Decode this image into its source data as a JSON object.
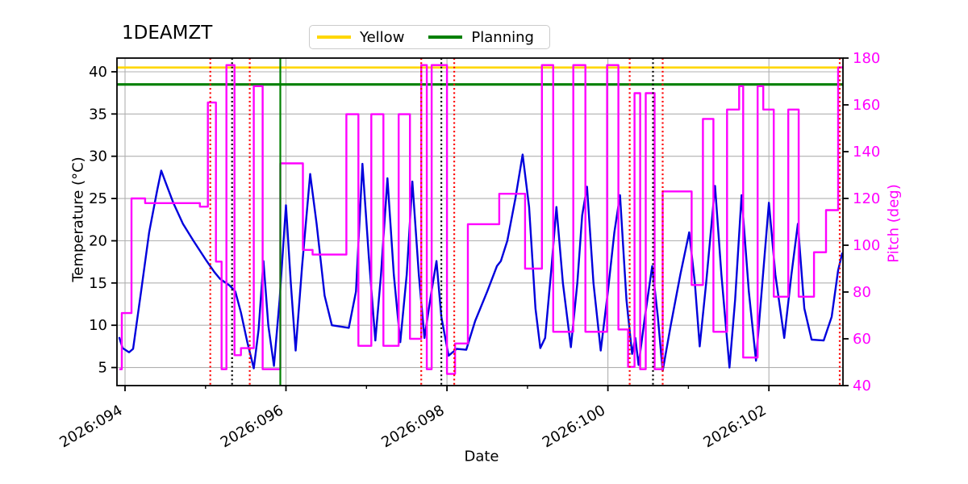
{
  "chart_data": {
    "type": "line",
    "title": "1DEAMZT",
    "xlabel": "Date",
    "ylabel_left": "Temperature (°C)",
    "ylabel_right": "Pitch (deg)",
    "grid": true,
    "legend_position": "top-center",
    "x_domain": [
      93.9,
      102.92
    ],
    "x_ticks": [
      {
        "value": 94,
        "label": "2026:094"
      },
      {
        "value": 96,
        "label": "2026:096"
      },
      {
        "value": 98,
        "label": "2026:098"
      },
      {
        "value": 100,
        "label": "2026:100"
      },
      {
        "value": 102,
        "label": "2026:102"
      }
    ],
    "x_minor_ticks": [
      95,
      97,
      99,
      101
    ],
    "y_left": {
      "range": [
        2.86,
        41.62
      ],
      "ticks": [
        5,
        10,
        15,
        20,
        25,
        30,
        35,
        40
      ]
    },
    "y_right": {
      "range": [
        40,
        180
      ],
      "ticks": [
        40,
        60,
        80,
        100,
        120,
        140,
        160,
        180
      ]
    },
    "limits": {
      "yellow": {
        "label": "Yellow",
        "value": 40.5,
        "color": "#ffd700"
      },
      "planning": {
        "label": "Planning",
        "value": 38.5,
        "color": "#008000"
      }
    },
    "event_lines": {
      "red_dotted_days": [
        95.06,
        95.55,
        97.68,
        98.09,
        100.27,
        100.68,
        102.88
      ],
      "black_dotted_days": [
        95.33,
        97.93,
        100.56
      ],
      "green_solid_days": [
        95.93
      ]
    },
    "series": {
      "temperature": {
        "name": "1DEAMZT",
        "axis": "left",
        "color": "#0000dd",
        "points": [
          [
            93.93,
            8.5
          ],
          [
            93.97,
            7.3
          ],
          [
            94.05,
            6.8
          ],
          [
            94.1,
            7.2
          ],
          [
            94.2,
            14.0
          ],
          [
            94.3,
            21.0
          ],
          [
            94.4,
            26.0
          ],
          [
            94.45,
            28.3
          ],
          [
            94.5,
            27.0
          ],
          [
            94.6,
            24.5
          ],
          [
            94.72,
            22.0
          ],
          [
            94.85,
            20.0
          ],
          [
            95.0,
            17.8
          ],
          [
            95.11,
            16.3
          ],
          [
            95.18,
            15.5
          ],
          [
            95.3,
            14.7
          ],
          [
            95.37,
            14.0
          ],
          [
            95.44,
            11.5
          ],
          [
            95.52,
            8.0
          ],
          [
            95.6,
            4.9
          ],
          [
            95.66,
            9.5
          ],
          [
            95.72,
            17.6
          ],
          [
            95.78,
            10.0
          ],
          [
            95.85,
            5.2
          ],
          [
            95.92,
            13.0
          ],
          [
            96.0,
            24.2
          ],
          [
            96.06,
            15.0
          ],
          [
            96.12,
            7.0
          ],
          [
            96.2,
            17.0
          ],
          [
            96.3,
            27.9
          ],
          [
            96.38,
            22.0
          ],
          [
            96.48,
            13.5
          ],
          [
            96.57,
            10.0
          ],
          [
            96.78,
            9.7
          ],
          [
            96.87,
            14.0
          ],
          [
            96.95,
            29.1
          ],
          [
            97.03,
            18.0
          ],
          [
            97.11,
            8.2
          ],
          [
            97.18,
            16.0
          ],
          [
            97.26,
            27.4
          ],
          [
            97.34,
            16.0
          ],
          [
            97.42,
            8.0
          ],
          [
            97.5,
            16.0
          ],
          [
            97.57,
            27.0
          ],
          [
            97.65,
            16.0
          ],
          [
            97.72,
            8.5
          ],
          [
            97.8,
            13.5
          ],
          [
            97.87,
            17.6
          ],
          [
            97.93,
            11.0
          ],
          [
            98.02,
            6.4
          ],
          [
            98.12,
            7.2
          ],
          [
            98.24,
            7.1
          ],
          [
            98.35,
            10.5
          ],
          [
            98.5,
            14.0
          ],
          [
            98.62,
            17.0
          ],
          [
            98.67,
            17.6
          ],
          [
            98.75,
            20.0
          ],
          [
            98.85,
            25.0
          ],
          [
            98.94,
            30.2
          ],
          [
            99.02,
            24.0
          ],
          [
            99.1,
            12.0
          ],
          [
            99.16,
            7.3
          ],
          [
            99.22,
            8.5
          ],
          [
            99.3,
            17.0
          ],
          [
            99.36,
            24.0
          ],
          [
            99.44,
            15.0
          ],
          [
            99.54,
            7.4
          ],
          [
            99.62,
            15.0
          ],
          [
            99.68,
            23.0
          ],
          [
            99.74,
            26.4
          ],
          [
            99.82,
            15.0
          ],
          [
            99.91,
            7.0
          ],
          [
            100.0,
            14.0
          ],
          [
            100.08,
            21.0
          ],
          [
            100.15,
            25.4
          ],
          [
            100.23,
            13.0
          ],
          [
            100.3,
            6.6
          ],
          [
            100.34,
            8.5
          ],
          [
            100.38,
            5.3
          ],
          [
            100.46,
            11.0
          ],
          [
            100.55,
            17.0
          ],
          [
            100.62,
            11.0
          ],
          [
            100.68,
            4.6
          ],
          [
            100.78,
            10.0
          ],
          [
            100.9,
            16.0
          ],
          [
            101.01,
            21.0
          ],
          [
            101.08,
            15.0
          ],
          [
            101.14,
            7.5
          ],
          [
            101.22,
            15.0
          ],
          [
            101.33,
            26.5
          ],
          [
            101.41,
            16.0
          ],
          [
            101.51,
            5.0
          ],
          [
            101.58,
            13.0
          ],
          [
            101.66,
            25.4
          ],
          [
            101.75,
            14.0
          ],
          [
            101.84,
            5.8
          ],
          [
            101.91,
            14.0
          ],
          [
            102.0,
            24.5
          ],
          [
            102.08,
            16.0
          ],
          [
            102.19,
            8.5
          ],
          [
            102.28,
            16.0
          ],
          [
            102.36,
            22.0
          ],
          [
            102.44,
            12.0
          ],
          [
            102.53,
            8.3
          ],
          [
            102.68,
            8.2
          ],
          [
            102.78,
            11.0
          ],
          [
            102.86,
            16.5
          ],
          [
            102.91,
            18.5
          ]
        ]
      },
      "pitch": {
        "name": "Pitch",
        "axis": "right",
        "color": "#ff00ff",
        "step": true,
        "points": [
          [
            93.93,
            47
          ],
          [
            93.96,
            71
          ],
          [
            94.08,
            120
          ],
          [
            94.25,
            118
          ],
          [
            94.93,
            116.5
          ],
          [
            95.03,
            161
          ],
          [
            95.13,
            93
          ],
          [
            95.2,
            47
          ],
          [
            95.26,
            177
          ],
          [
            95.36,
            53
          ],
          [
            95.44,
            56
          ],
          [
            95.6,
            168
          ],
          [
            95.71,
            47
          ],
          [
            95.93,
            135
          ],
          [
            96.21,
            98
          ],
          [
            96.33,
            96
          ],
          [
            96.75,
            156
          ],
          [
            96.9,
            57
          ],
          [
            97.06,
            156
          ],
          [
            97.21,
            57
          ],
          [
            97.4,
            156
          ],
          [
            97.54,
            60
          ],
          [
            97.68,
            177
          ],
          [
            97.75,
            47
          ],
          [
            97.81,
            177
          ],
          [
            98.0,
            45
          ],
          [
            98.1,
            58
          ],
          [
            98.26,
            109
          ],
          [
            98.65,
            122
          ],
          [
            98.97,
            90
          ],
          [
            99.18,
            177
          ],
          [
            99.32,
            63
          ],
          [
            99.57,
            177
          ],
          [
            99.72,
            63
          ],
          [
            99.99,
            177
          ],
          [
            100.13,
            64
          ],
          [
            100.25,
            48
          ],
          [
            100.33,
            165
          ],
          [
            100.4,
            47
          ],
          [
            100.47,
            165
          ],
          [
            100.58,
            47
          ],
          [
            100.68,
            123
          ],
          [
            101.04,
            83
          ],
          [
            101.18,
            154
          ],
          [
            101.31,
            63
          ],
          [
            101.48,
            158
          ],
          [
            101.63,
            168
          ],
          [
            101.68,
            52
          ],
          [
            101.86,
            168
          ],
          [
            101.93,
            158
          ],
          [
            102.06,
            78
          ],
          [
            102.24,
            158
          ],
          [
            102.37,
            78
          ],
          [
            102.56,
            97
          ],
          [
            102.71,
            115
          ],
          [
            102.86,
            176
          ]
        ]
      }
    },
    "colors": {
      "background": "#ffffff",
      "grid": "#b0b0b0",
      "spine": "#000000",
      "temperature": "#0000dd",
      "pitch": "#ff00ff",
      "yellow_limit": "#ffd700",
      "planning_limit": "#008000",
      "red_event": "#ff0000",
      "black_event": "#000000",
      "green_event": "#008000",
      "right_tick_labels": "#ff00ff"
    }
  }
}
